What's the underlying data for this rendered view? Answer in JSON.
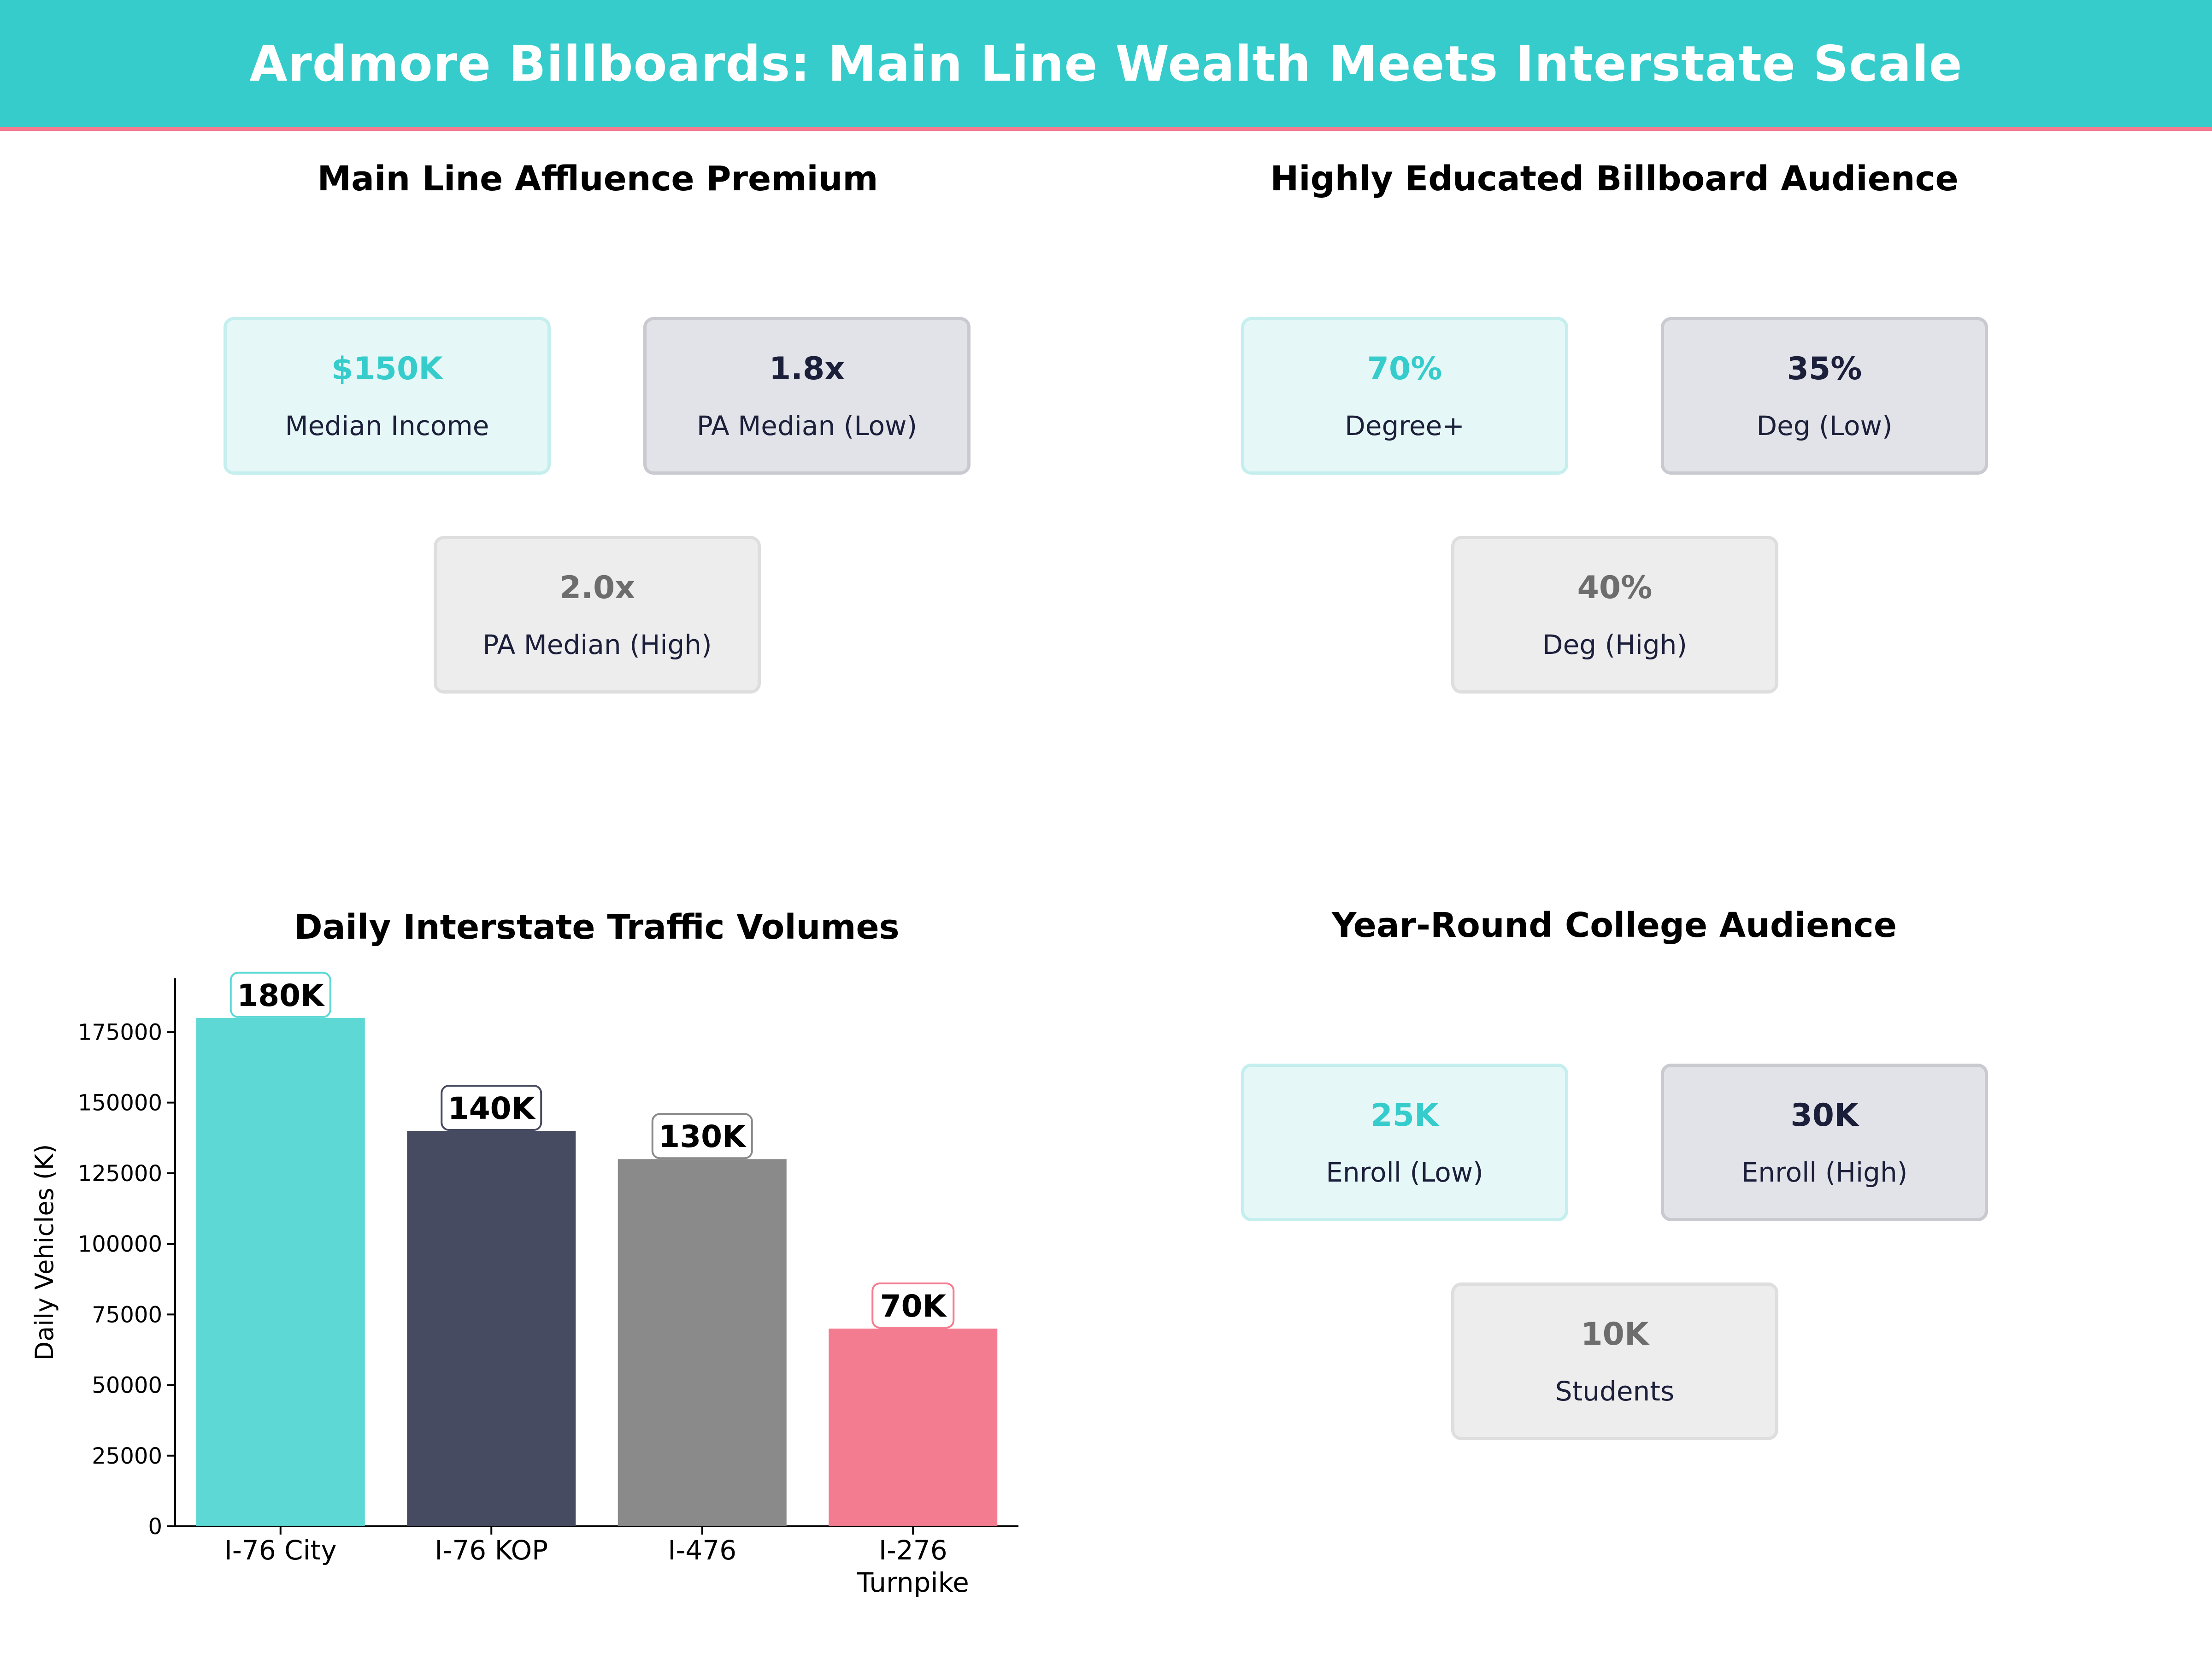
{
  "header": {
    "title": "Ardmore Billboards: Main Line Wealth Meets Interstate Scale"
  },
  "panels": {
    "affluence": {
      "title": "Main Line Affluence Premium",
      "cards": [
        {
          "value": "$150K",
          "label": "Median Income"
        },
        {
          "value": "1.8x",
          "label": "PA Median (Low)"
        },
        {
          "value": "2.0x",
          "label": "PA Median (High)"
        }
      ]
    },
    "education": {
      "title": "Highly Educated Billboard Audience",
      "cards": [
        {
          "value": "70%",
          "label": "Degree+"
        },
        {
          "value": "35%",
          "label": "Deg (Low)"
        },
        {
          "value": "40%",
          "label": "Deg (High)"
        }
      ]
    },
    "college": {
      "title": "Year-Round College Audience",
      "cards": [
        {
          "value": "25K",
          "label": "Enroll (Low)"
        },
        {
          "value": "30K",
          "label": "Enroll (High)"
        },
        {
          "value": "10K",
          "label": "Students"
        }
      ]
    }
  },
  "chart_data": {
    "type": "bar",
    "title": "Daily Interstate Traffic Volumes",
    "xlabel": "",
    "ylabel": "Daily Vehicles (K)",
    "categories": [
      "I-76 City",
      "I-76 KOP",
      "I-476",
      "I-276 Turnpike"
    ],
    "values": [
      180000,
      140000,
      130000,
      70000
    ],
    "data_labels": [
      "180K",
      "140K",
      "130K",
      "70K"
    ],
    "colors": [
      "#5ed8d5",
      "#474b61",
      "#8a8a8a",
      "#f47c90"
    ],
    "label_border_colors": [
      "#5ed8d5",
      "#474b61",
      "#8a8a8a",
      "#f47c90"
    ],
    "yticks": [
      0,
      25000,
      50000,
      75000,
      100000,
      125000,
      150000,
      175000
    ],
    "ylim": [
      0,
      194000
    ],
    "grid": false
  }
}
